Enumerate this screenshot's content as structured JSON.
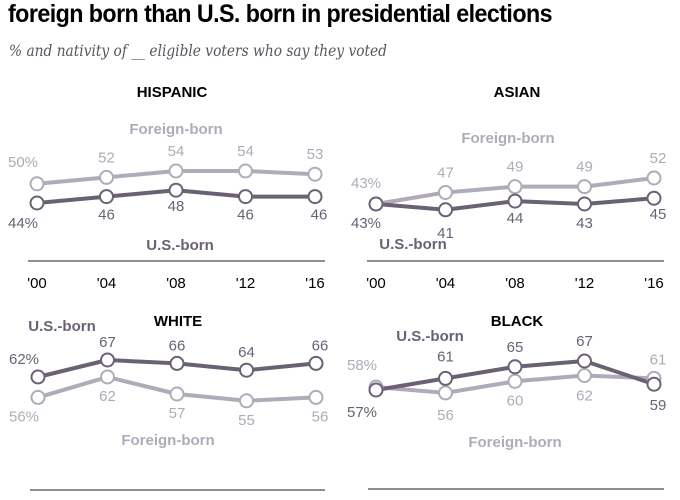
{
  "header": {
    "title": "foreign born than U.S. born in presidential elections",
    "subtitle": "% and nativity of __ eligible voters who say they voted"
  },
  "colors": {
    "us_born": "#6b6175",
    "foreign_born": "#b1aab8",
    "axis": "#8f8f8f"
  },
  "chart_data": [
    {
      "type": "line",
      "title": "HISPANIC",
      "categories": [
        "'00",
        "'04",
        "'08",
        "'12",
        "'16"
      ],
      "series": [
        {
          "name": "Foreign-born",
          "values": [
            50,
            52,
            54,
            54,
            53
          ],
          "labels": [
            "50%",
            "52",
            "54",
            "54",
            "53"
          ]
        },
        {
          "name": "U.S.-born",
          "values": [
            44,
            46,
            48,
            46,
            46
          ],
          "labels": [
            "44%",
            "46",
            "48",
            "46",
            "46"
          ]
        }
      ],
      "xlabel": "",
      "ylabel": "",
      "show_x_ticks": true
    },
    {
      "type": "line",
      "title": "ASIAN",
      "categories": [
        "'00",
        "'04",
        "'08",
        "'12",
        "'16"
      ],
      "series": [
        {
          "name": "Foreign-born",
          "values": [
            43,
            47,
            49,
            49,
            52
          ],
          "labels": [
            "43%",
            "47",
            "49",
            "49",
            "52"
          ]
        },
        {
          "name": "U.S.-born",
          "values": [
            43,
            41,
            44,
            43,
            45
          ],
          "labels": [
            "43%",
            "41",
            "44",
            "43",
            "45"
          ]
        }
      ],
      "xlabel": "",
      "ylabel": "",
      "show_x_ticks": true
    },
    {
      "type": "line",
      "title": "WHITE",
      "categories": [
        "'00",
        "'04",
        "'08",
        "'12",
        "'16"
      ],
      "series": [
        {
          "name": "U.S.-born",
          "values": [
            62,
            67,
            66,
            64,
            66
          ],
          "labels": [
            "62%",
            "67",
            "66",
            "64",
            "66"
          ]
        },
        {
          "name": "Foreign-born",
          "values": [
            56,
            62,
            57,
            55,
            56
          ],
          "labels": [
            "56%",
            "62",
            "57",
            "55",
            "56"
          ]
        }
      ],
      "xlabel": "",
      "ylabel": "",
      "show_x_ticks": false
    },
    {
      "type": "line",
      "title": "BLACK",
      "categories": [
        "'00",
        "'04",
        "'08",
        "'12",
        "'16"
      ],
      "series": [
        {
          "name": "U.S.-born",
          "values": [
            57,
            61,
            65,
            67,
            59
          ],
          "labels": [
            "57%",
            "61",
            "65",
            "67",
            "59"
          ]
        },
        {
          "name": "Foreign-born",
          "values": [
            58,
            56,
            60,
            62,
            61
          ],
          "labels": [
            "58%",
            "56",
            "60",
            "62",
            "61"
          ]
        }
      ],
      "xlabel": "",
      "ylabel": "",
      "show_x_ticks": false
    }
  ]
}
